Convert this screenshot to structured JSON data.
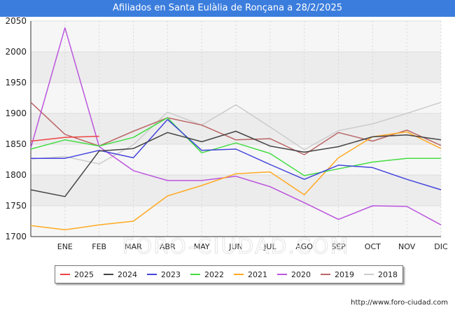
{
  "header": {
    "title": "Afiliados en Santa Eulàlia de Ronçana a 28/2/2025"
  },
  "footer": {
    "url": "http://www.foro-ciudad.com"
  },
  "watermark": "FORO-CIUDAD.COM",
  "chart_data": {
    "type": "line",
    "title": "Afiliados en Santa Eulàlia de Ronçana a 28/2/2025",
    "x_labels": [
      "",
      "ENE",
      "FEB",
      "MAR",
      "ABR",
      "MAY",
      "JUN",
      "JUL",
      "AGO",
      "SEP",
      "OCT",
      "NOV",
      "DIC"
    ],
    "y_ticks": [
      1700,
      1750,
      1800,
      1850,
      1900,
      1950,
      2000,
      2050
    ],
    "ylim": [
      1700,
      2050
    ],
    "grid": true,
    "legend_position": "bottom",
    "series": [
      {
        "name": "2025",
        "color": "#ee4444",
        "values": [
          1855,
          1861,
          1863
        ]
      },
      {
        "name": "2024",
        "color": "#444444",
        "values": [
          1776,
          1765,
          1839,
          1843,
          1869,
          1854,
          1871,
          1847,
          1837,
          1846,
          1862,
          1865,
          1857
        ]
      },
      {
        "name": "2023",
        "color": "#4444dd",
        "values": [
          1827,
          1827,
          1840,
          1828,
          1890,
          1840,
          1842,
          1817,
          1793,
          1816,
          1812,
          1793,
          1776
        ]
      },
      {
        "name": "2022",
        "color": "#44dd44",
        "values": [
          1842,
          1857,
          1847,
          1861,
          1893,
          1836,
          1852,
          1835,
          1799,
          1810,
          1821,
          1827,
          1827
        ]
      },
      {
        "name": "2021",
        "color": "#ffaa22",
        "values": [
          1718,
          1711,
          1719,
          1725,
          1766,
          1783,
          1802,
          1805,
          1768,
          1828,
          1862,
          1870,
          1843
        ]
      },
      {
        "name": "2020",
        "color": "#bb55dd",
        "values": [
          1844,
          2039,
          1846,
          1807,
          1791,
          1791,
          1798,
          1781,
          1755,
          1728,
          1750,
          1749,
          1719
        ]
      },
      {
        "name": "2019",
        "color": "#bb6666",
        "values": [
          1918,
          1866,
          1847,
          1871,
          1893,
          1881,
          1857,
          1859,
          1833,
          1869,
          1855,
          1873,
          1848
        ]
      },
      {
        "name": "2018",
        "color": "#cccccc",
        "values": [
          1826,
          1830,
          1818,
          1849,
          1902,
          1881,
          1914,
          1878,
          1841,
          1872,
          1883,
          1900,
          1918
        ]
      }
    ]
  }
}
